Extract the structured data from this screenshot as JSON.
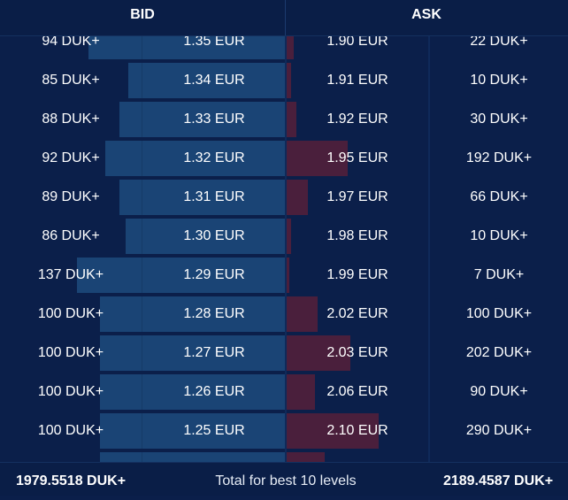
{
  "header": {
    "bid_label": "BID",
    "ask_label": "ASK"
  },
  "rows": [
    {
      "bid_qty": "94 DUK+",
      "bid_price": "1.35 EUR",
      "ask_price": "1.90 EUR",
      "ask_qty": "22 DUK+",
      "bid_depth": 0.69,
      "ask_depth": 0.05
    },
    {
      "bid_qty": "85 DUK+",
      "bid_price": "1.34 EUR",
      "ask_price": "1.91 EUR",
      "ask_qty": "10 DUK+",
      "bid_depth": 0.55,
      "ask_depth": 0.03
    },
    {
      "bid_qty": "88 DUK+",
      "bid_price": "1.33 EUR",
      "ask_price": "1.92 EUR",
      "ask_qty": "30 DUK+",
      "bid_depth": 0.58,
      "ask_depth": 0.07
    },
    {
      "bid_qty": "92 DUK+",
      "bid_price": "1.32 EUR",
      "ask_price": "1.95 EUR",
      "ask_qty": "192 DUK+",
      "bid_depth": 0.63,
      "ask_depth": 0.43
    },
    {
      "bid_qty": "89 DUK+",
      "bid_price": "1.31 EUR",
      "ask_price": "1.97 EUR",
      "ask_qty": "66 DUK+",
      "bid_depth": 0.58,
      "ask_depth": 0.15
    },
    {
      "bid_qty": "86 DUK+",
      "bid_price": "1.30 EUR",
      "ask_price": "1.98 EUR",
      "ask_qty": "10 DUK+",
      "bid_depth": 0.56,
      "ask_depth": 0.03
    },
    {
      "bid_qty": "137 DUK+",
      "bid_price": "1.29 EUR",
      "ask_price": "1.99 EUR",
      "ask_qty": "7 DUK+",
      "bid_depth": 0.73,
      "ask_depth": 0.02
    },
    {
      "bid_qty": "100 DUK+",
      "bid_price": "1.28 EUR",
      "ask_price": "2.02 EUR",
      "ask_qty": "100 DUK+",
      "bid_depth": 0.65,
      "ask_depth": 0.22
    },
    {
      "bid_qty": "100 DUK+",
      "bid_price": "1.27 EUR",
      "ask_price": "2.03 EUR",
      "ask_qty": "202 DUK+",
      "bid_depth": 0.65,
      "ask_depth": 0.45
    },
    {
      "bid_qty": "100 DUK+",
      "bid_price": "1.26 EUR",
      "ask_price": "2.06 EUR",
      "ask_qty": "90 DUK+",
      "bid_depth": 0.65,
      "ask_depth": 0.2
    },
    {
      "bid_qty": "100 DUK+",
      "bid_price": "1.25 EUR",
      "ask_price": "2.10 EUR",
      "ask_qty": "290 DUK+",
      "bid_depth": 0.65,
      "ask_depth": 0.65
    },
    {
      "bid_qty": "",
      "bid_price": "",
      "ask_price": "",
      "ask_qty": "",
      "bid_depth": 0.65,
      "ask_depth": 0.27
    }
  ],
  "footer": {
    "bid_total": "1979.5518 DUK+",
    "label": "Total for best 10 levels",
    "ask_total": "2189.4587 DUK+"
  },
  "colors": {
    "background": "#0b1f4a",
    "bid_bar": "#1a4475",
    "ask_bar": "#4a1f3c"
  }
}
